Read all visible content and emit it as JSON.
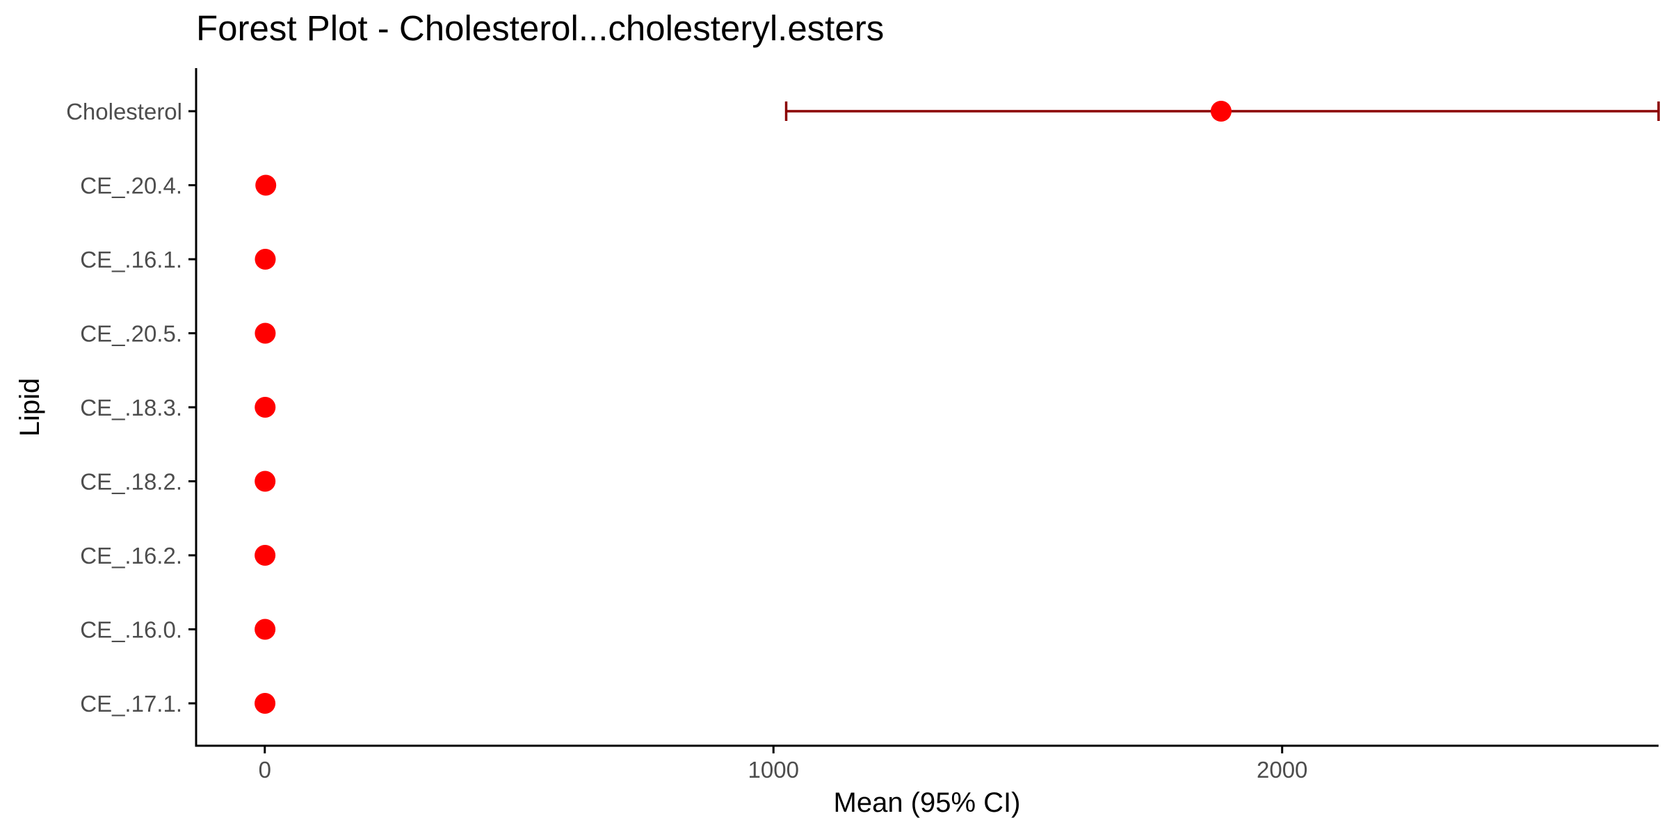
{
  "chart_data": {
    "type": "forest",
    "title": "Forest Plot - Cholesterol...cholesteryl.esters",
    "xlabel": "Mean (95% CI)",
    "ylabel": "Lipid",
    "xlim": [
      -135,
      2740
    ],
    "xticks": [
      0,
      1000,
      2000
    ],
    "xtick_labels": [
      "0",
      "1000",
      "2000"
    ],
    "grid": false,
    "legend": "none",
    "categories": [
      "Cholesterol",
      "CE_.20.4.",
      "CE_.16.1.",
      "CE_.20.5.",
      "CE_.18.3.",
      "CE_.18.2.",
      "CE_.16.2.",
      "CE_.16.0.",
      "CE_.17.1."
    ],
    "series": [
      {
        "mean": [
          1880,
          2.0,
          1.0,
          0.9,
          0.7,
          0.6,
          0.5,
          0.5,
          0.4
        ],
        "lower": [
          1025,
          0.5,
          0.2,
          0.1,
          0.1,
          0.1,
          0.1,
          0.1,
          0.1
        ],
        "upper": [
          2740,
          3.5,
          1.8,
          1.7,
          1.3,
          1.1,
          0.9,
          0.9,
          0.7
        ]
      }
    ],
    "colors": {
      "point": "#ff0000",
      "errorbar": "#8b0000",
      "axis": "#000000",
      "tick_label": "#4d4d4d"
    }
  }
}
